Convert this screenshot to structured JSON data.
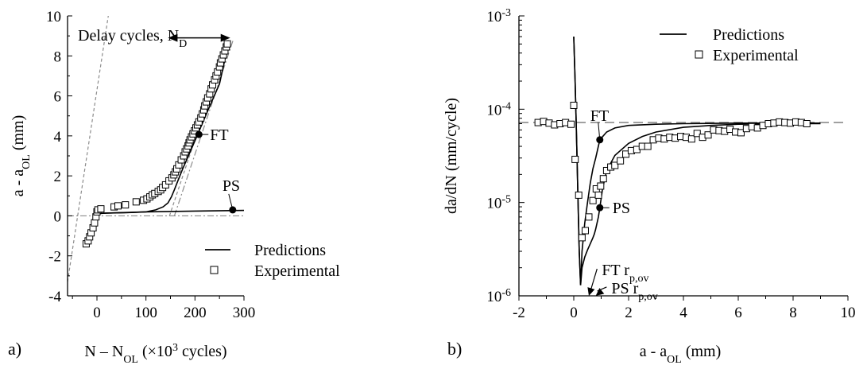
{
  "chart_data": [
    {
      "type": "scatter",
      "panel_label": "a)",
      "xlabel": "N – N",
      "xlabel_sub": "OL",
      "xlabel_tail": " (×10",
      "xlabel_sup": "3",
      "xlabel_end": " cycles)",
      "ylabel": "a - a",
      "ylabel_sub": "OL",
      "ylabel_tail": " (mm)",
      "xlim": [
        -60,
        300
      ],
      "ylim": [
        -4,
        10
      ],
      "xticks": [
        0,
        100,
        200,
        300
      ],
      "yticks": [
        -4,
        -2,
        0,
        2,
        4,
        6,
        8,
        10
      ],
      "legend": {
        "position": "bottom-right",
        "line": "Predictions",
        "marker": "Experimental"
      },
      "annotation_delay": "Delay cycles, N",
      "annotation_delay_sub": "D",
      "delay_arrow_x": [
        145,
        272
      ],
      "delay_arrow_y": 8.9,
      "labels": [
        {
          "text": "FT",
          "point": [
            208,
            4.07
          ],
          "offset": [
            12,
            0
          ]
        },
        {
          "text": "PS",
          "point": [
            277,
            0.3
          ],
          "offset": [
            -5,
            -20
          ]
        }
      ],
      "experimental": {
        "x": [
          -22,
          -18,
          -15,
          -12,
          -8,
          -5,
          -2,
          0,
          2,
          8,
          35,
          43,
          58,
          80,
          95,
          102,
          108,
          113,
          118,
          125,
          130,
          134,
          140,
          147,
          153,
          157,
          160,
          163,
          167,
          172,
          177,
          180,
          183,
          186,
          188,
          190,
          193,
          196,
          199,
          202,
          205,
          208,
          212,
          215,
          218,
          220,
          223,
          226,
          230,
          233,
          236,
          240,
          243,
          246,
          250,
          252,
          255,
          258,
          261,
          264,
          266
        ],
        "y": [
          -1.4,
          -1.25,
          -1.05,
          -0.85,
          -0.6,
          -0.35,
          -0.05,
          0.2,
          0.3,
          0.35,
          0.45,
          0.5,
          0.55,
          0.7,
          0.78,
          0.85,
          0.95,
          1.05,
          1.12,
          1.22,
          1.3,
          1.42,
          1.55,
          1.75,
          1.9,
          2.05,
          2.2,
          2.35,
          2.55,
          2.8,
          3.0,
          3.2,
          3.35,
          3.5,
          3.65,
          3.8,
          3.95,
          4.1,
          4.25,
          4.4,
          4.55,
          4.7,
          4.9,
          5.1,
          5.3,
          5.5,
          5.7,
          5.9,
          6.1,
          6.35,
          6.55,
          6.8,
          7.0,
          7.2,
          7.45,
          7.65,
          7.85,
          8.05,
          8.25,
          8.45,
          8.6
        ]
      },
      "prediction_ft": {
        "x": [
          -22,
          -10,
          0,
          5,
          20,
          60,
          100,
          120,
          135,
          145,
          152,
          158,
          165,
          175,
          200,
          225,
          250,
          268
        ],
        "y": [
          -1.4,
          -0.7,
          0.0,
          0.12,
          0.14,
          0.16,
          0.2,
          0.3,
          0.45,
          0.65,
          0.95,
          1.3,
          1.75,
          2.35,
          3.75,
          5.2,
          6.6,
          8.6
        ]
      },
      "prediction_ps": {
        "x": [
          -22,
          -10,
          0,
          5,
          20,
          100,
          200,
          300
        ],
        "y": [
          -1.4,
          -0.7,
          0.0,
          0.12,
          0.14,
          0.2,
          0.24,
          0.27
        ]
      },
      "ref_lines": [
        {
          "style": "dashed",
          "x": [
            -60,
            30
          ],
          "y": [
            -3.3,
            11.1
          ]
        },
        {
          "style": "dashed",
          "x": [
            148,
            268
          ],
          "y": [
            0,
            8.8
          ]
        },
        {
          "style": "dashdot",
          "x": [
            158,
            278
          ],
          "y": [
            0,
            8.8
          ]
        },
        {
          "style": "dashdot",
          "x": [
            -60,
            300
          ],
          "y": [
            0,
            0
          ]
        }
      ]
    },
    {
      "type": "scatter",
      "panel_label": "b)",
      "xlabel": "a - a",
      "xlabel_sub": "OL",
      "xlabel_tail": " (mm)",
      "ylabel": "da/dN (mm/cycle)",
      "yscale": "log",
      "xlim": [
        -2,
        10
      ],
      "ylim": [
        1e-06,
        0.001
      ],
      "xticks": [
        -2,
        0,
        2,
        4,
        6,
        8,
        10
      ],
      "yticks": [
        {
          "base": "10",
          "exp": "-6",
          "value": 1e-06
        },
        {
          "base": "10",
          "exp": "-5",
          "value": 1e-05
        },
        {
          "base": "10",
          "exp": "-4",
          "value": 0.0001
        },
        {
          "base": "10",
          "exp": "-3",
          "value": 0.001
        }
      ],
      "legend": {
        "position": "top-right",
        "line": "Predictions",
        "marker": "Experimental"
      },
      "baseline_rate": 7.2e-05,
      "labels": [
        {
          "text": "FT",
          "point": [
            0.95,
            4.7e-05
          ],
          "offset": [
            -2,
            -22
          ]
        },
        {
          "text": "PS",
          "point": [
            0.95,
            8.8e-06
          ],
          "offset": [
            12,
            0
          ]
        }
      ],
      "rp_labels": [
        {
          "text": "FT r",
          "sub": "p,ov",
          "arrow_to": [
            0.55,
            1e-06
          ],
          "text_at": [
            0.85,
            1.8e-06
          ]
        },
        {
          "text": "PS r",
          "sub": "p,ov",
          "arrow_to": [
            0.8,
            1e-06
          ],
          "text_at": [
            1.2,
            1.15e-06
          ]
        }
      ],
      "experimental": {
        "x": [
          -1.3,
          -1.1,
          -0.9,
          -0.7,
          -0.5,
          -0.3,
          -0.1,
          0.0,
          0.05,
          0.18,
          0.3,
          0.42,
          0.55,
          0.7,
          0.82,
          0.9,
          0.98,
          1.08,
          1.2,
          1.35,
          1.5,
          1.7,
          1.9,
          2.1,
          2.3,
          2.5,
          2.7,
          2.9,
          3.1,
          3.3,
          3.5,
          3.7,
          3.9,
          4.1,
          4.3,
          4.5,
          4.7,
          4.9,
          5.1,
          5.3,
          5.5,
          5.7,
          5.9,
          6.1,
          6.3,
          6.5,
          6.7,
          6.9,
          7.1,
          7.3,
          7.5,
          7.7,
          7.9,
          8.1,
          8.3,
          8.5
        ],
        "y": [
          7.2e-05,
          7.4e-05,
          7.1e-05,
          6.8e-05,
          7e-05,
          7.2e-05,
          6.9e-05,
          0.00011,
          2.9e-05,
          1.2e-05,
          4.2e-06,
          5e-06,
          7e-06,
          1.05e-05,
          1.4e-05,
          1.2e-05,
          1.5e-05,
          1.8e-05,
          2.2e-05,
          2.4e-05,
          2.5e-05,
          2.8e-05,
          3.3e-05,
          3.6e-05,
          3.7e-05,
          4e-05,
          4e-05,
          4.7e-05,
          4.9e-05,
          4.8e-05,
          5e-05,
          4.9e-05,
          5.1e-05,
          5e-05,
          4.8e-05,
          5.5e-05,
          5e-05,
          5.3e-05,
          6e-05,
          5.9e-05,
          5.8e-05,
          6.1e-05,
          5.7e-05,
          5.6e-05,
          6.2e-05,
          6.5e-05,
          6.3e-05,
          6.7e-05,
          7e-05,
          7.1e-05,
          7.3e-05,
          7.2e-05,
          7.1e-05,
          7.3e-05,
          7.2e-05,
          7e-05
        ]
      },
      "prediction_ft": {
        "x": [
          0.0,
          0.05,
          0.1,
          0.15,
          0.2,
          0.25,
          0.3,
          0.4,
          0.5,
          0.6,
          0.7,
          0.8,
          0.95,
          1.2,
          1.5,
          2.0,
          3.0,
          4.0,
          6.0,
          8.0,
          9.0
        ],
        "y": [
          0.0006,
          0.0002,
          5e-05,
          1.2e-05,
          3e-06,
          1.3e-06,
          3e-06,
          6e-06,
          1e-05,
          1.6e-05,
          2.3e-05,
          3e-05,
          4.7e-05,
          5.7e-05,
          6.3e-05,
          6.7e-05,
          6.9e-05,
          7e-05,
          7.1e-05,
          7.1e-05,
          7.1e-05
        ]
      },
      "prediction_ps": {
        "x": [
          0.0,
          0.05,
          0.1,
          0.15,
          0.2,
          0.25,
          0.3,
          0.4,
          0.5,
          0.6,
          0.7,
          0.75,
          0.8,
          0.9,
          0.95,
          1.05,
          1.2,
          1.5,
          2.0,
          2.5,
          3.0,
          4.0,
          5.0,
          6.0,
          8.0,
          9.0
        ],
        "y": [
          0.0006,
          0.0002,
          5e-05,
          1.2e-05,
          3e-06,
          1.3e-06,
          2e-06,
          2.6e-06,
          3.1e-06,
          3.6e-06,
          4.2e-06,
          4.6e-06,
          5.2e-06,
          7e-06,
          8.8e-06,
          1.4e-05,
          2.2e-05,
          3.2e-05,
          4.3e-05,
          5.1e-05,
          5.7e-05,
          6.4e-05,
          6.7e-05,
          6.9e-05,
          7e-05,
          7e-05
        ]
      }
    }
  ]
}
